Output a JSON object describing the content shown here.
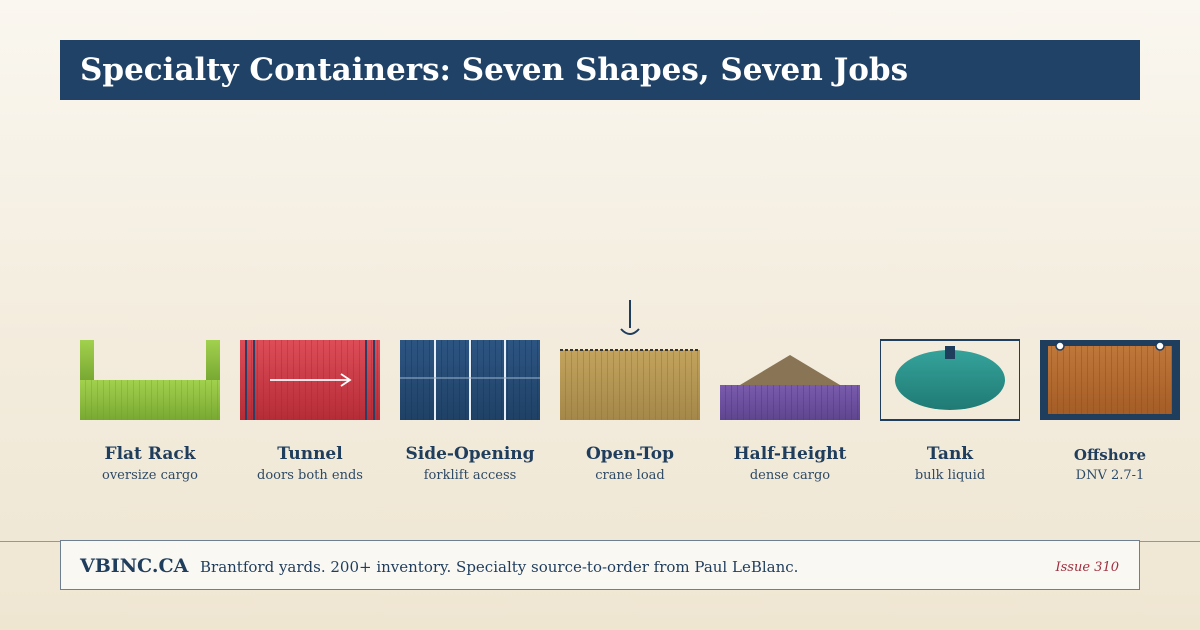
{
  "header": {
    "title": "Specialty Containers: Seven Shapes, Seven Jobs"
  },
  "containers": [
    {
      "name": "Flat Rack",
      "subtitle": "oversize cargo",
      "icon": "flat-rack-container-icon",
      "color": "#8cbf3f"
    },
    {
      "name": "Tunnel",
      "subtitle": "doors both ends",
      "icon": "tunnel-container-icon",
      "color": "#c8343f"
    },
    {
      "name": "Side-Opening",
      "subtitle": "forklift access",
      "icon": "side-opening-container-icon",
      "color": "#264a73"
    },
    {
      "name": "Open-Top",
      "subtitle": "crane load",
      "icon": "open-top-container-icon",
      "color": "#b0944f"
    },
    {
      "name": "Half-Height",
      "subtitle": "dense cargo",
      "icon": "half-height-container-icon",
      "color": "#6a4f99"
    },
    {
      "name": "Tank",
      "subtitle": "bulk liquid",
      "icon": "tank-container-icon",
      "color": "#2a8f8a"
    },
    {
      "name": "Offshore",
      "subtitle": "DNV 2.7-1",
      "icon": "offshore-container-icon",
      "color": "#b5692e"
    }
  ],
  "footer": {
    "brand": "VBINC.CA",
    "tagline": "Brantford yards. 200+ inventory. Specialty source-to-order from Paul LeBlanc.",
    "issue": "Issue 310"
  }
}
